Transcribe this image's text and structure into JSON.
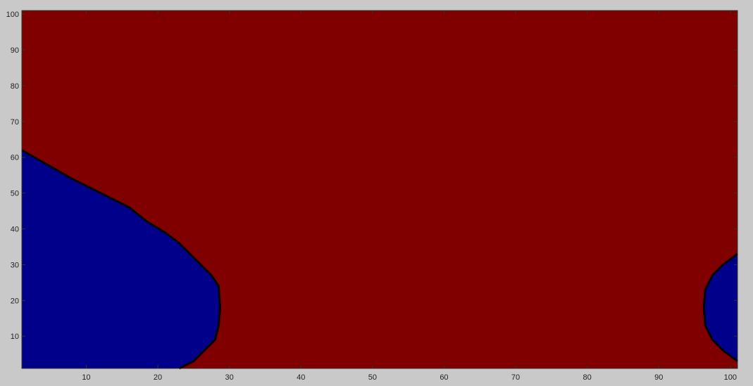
{
  "chart_data": {
    "type": "heatmap",
    "title": "",
    "xlabel": "",
    "ylabel": "",
    "xlim": [
      1,
      101
    ],
    "ylim": [
      1,
      101
    ],
    "xticks": [
      10,
      20,
      30,
      40,
      50,
      60,
      70,
      80,
      90,
      100
    ],
    "yticks": [
      10,
      20,
      30,
      40,
      50,
      60,
      70,
      80,
      90,
      100
    ],
    "grid": false,
    "background_value_color": "#800000",
    "region_color": "#00008b",
    "boundary_color": "#000000",
    "region_left_boundary": [
      {
        "y": 1,
        "x": 23
      },
      {
        "y": 3,
        "x": 25
      },
      {
        "y": 6,
        "x": 26.5
      },
      {
        "y": 9,
        "x": 28
      },
      {
        "y": 13,
        "x": 28.5
      },
      {
        "y": 18,
        "x": 28.7
      },
      {
        "y": 24,
        "x": 28.5
      },
      {
        "y": 27,
        "x": 27.5
      },
      {
        "y": 30,
        "x": 26
      },
      {
        "y": 33,
        "x": 24.5
      },
      {
        "y": 36,
        "x": 23
      },
      {
        "y": 39,
        "x": 21
      },
      {
        "y": 42,
        "x": 18.5
      },
      {
        "y": 46,
        "x": 16
      },
      {
        "y": 50,
        "x": 12
      },
      {
        "y": 54,
        "x": 8
      },
      {
        "y": 58,
        "x": 4.5
      },
      {
        "y": 62,
        "x": 1
      }
    ],
    "region_right_boundary": [
      {
        "y": 3,
        "x": 101
      },
      {
        "y": 6,
        "x": 99
      },
      {
        "y": 9,
        "x": 97.5
      },
      {
        "y": 13,
        "x": 96.5
      },
      {
        "y": 18,
        "x": 96.3
      },
      {
        "y": 23,
        "x": 96.5
      },
      {
        "y": 27,
        "x": 97.5
      },
      {
        "y": 30,
        "x": 99
      },
      {
        "y": 33,
        "x": 101
      }
    ]
  }
}
